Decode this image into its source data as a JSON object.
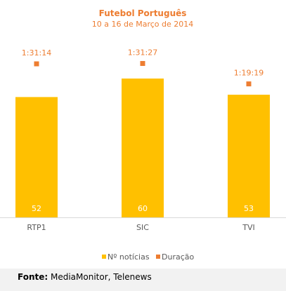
{
  "chart_data": {
    "type": "bar",
    "title": "Futebol Português",
    "subtitle": "10 a 16 de Março de 2014",
    "categories": [
      "RTP1",
      "SIC",
      "TVI"
    ],
    "series": [
      {
        "name": "Nº notícias",
        "values": [
          52,
          60,
          53
        ],
        "color": "#ffc000",
        "kind": "bar"
      },
      {
        "name": "Duração",
        "values": [
          "1:31:14",
          "1:31:27",
          "1:19:19"
        ],
        "seconds": [
          5474,
          5487,
          4759
        ],
        "color": "#ed7d31",
        "kind": "marker"
      }
    ],
    "legend_position": "bottom",
    "grid": false,
    "axis_color": "#d9d9d9",
    "title_color": "#ed7d31",
    "label_color": "#595959"
  },
  "source": {
    "label": "Fonte:",
    "text": " MediaMonitor, Telenews"
  }
}
